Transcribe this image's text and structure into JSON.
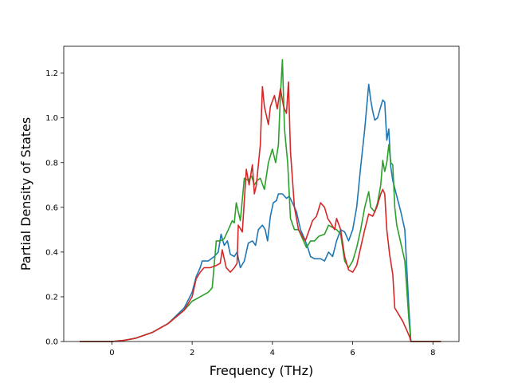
{
  "chart_data": {
    "type": "line",
    "title": "",
    "xlabel": "Frequency (THz)",
    "ylabel": "Partial Density of States",
    "xlim": [
      -1.2,
      8.65
    ],
    "ylim": [
      0.0,
      1.32
    ],
    "grid": false,
    "legend": "none",
    "x_ticks": [
      0,
      2,
      4,
      6,
      8
    ],
    "x_tick_labels": [
      "0",
      "2",
      "4",
      "6",
      "8"
    ],
    "y_ticks": [
      0.0,
      0.2,
      0.4,
      0.6,
      0.8,
      1.0,
      1.2
    ],
    "y_tick_labels": [
      "0.0",
      "0.2",
      "0.4",
      "0.6",
      "0.8",
      "1.0",
      "1.2"
    ],
    "series": [
      {
        "color": "#1f77b4",
        "points": [
          [
            -0.8,
            0.0
          ],
          [
            0.0,
            0.0
          ],
          [
            0.3,
            0.005
          ],
          [
            0.6,
            0.015
          ],
          [
            1.0,
            0.04
          ],
          [
            1.4,
            0.08
          ],
          [
            1.8,
            0.15
          ],
          [
            2.0,
            0.22
          ],
          [
            2.1,
            0.29
          ],
          [
            2.2,
            0.33
          ],
          [
            2.25,
            0.36
          ],
          [
            2.4,
            0.36
          ],
          [
            2.55,
            0.38
          ],
          [
            2.65,
            0.4
          ],
          [
            2.72,
            0.48
          ],
          [
            2.8,
            0.43
          ],
          [
            2.88,
            0.45
          ],
          [
            2.95,
            0.39
          ],
          [
            3.05,
            0.38
          ],
          [
            3.12,
            0.4
          ],
          [
            3.2,
            0.33
          ],
          [
            3.3,
            0.36
          ],
          [
            3.4,
            0.44
          ],
          [
            3.5,
            0.45
          ],
          [
            3.58,
            0.43
          ],
          [
            3.65,
            0.5
          ],
          [
            3.75,
            0.52
          ],
          [
            3.82,
            0.5
          ],
          [
            3.88,
            0.45
          ],
          [
            3.95,
            0.56
          ],
          [
            4.02,
            0.62
          ],
          [
            4.1,
            0.63
          ],
          [
            4.15,
            0.66
          ],
          [
            4.25,
            0.66
          ],
          [
            4.35,
            0.64
          ],
          [
            4.42,
            0.65
          ],
          [
            4.5,
            0.62
          ],
          [
            4.6,
            0.58
          ],
          [
            4.7,
            0.5
          ],
          [
            4.8,
            0.46
          ],
          [
            4.88,
            0.42
          ],
          [
            4.95,
            0.38
          ],
          [
            5.05,
            0.37
          ],
          [
            5.2,
            0.37
          ],
          [
            5.3,
            0.36
          ],
          [
            5.4,
            0.4
          ],
          [
            5.5,
            0.38
          ],
          [
            5.6,
            0.45
          ],
          [
            5.7,
            0.5
          ],
          [
            5.8,
            0.49
          ],
          [
            5.9,
            0.45
          ],
          [
            6.0,
            0.5
          ],
          [
            6.1,
            0.6
          ],
          [
            6.2,
            0.78
          ],
          [
            6.3,
            0.95
          ],
          [
            6.4,
            1.15
          ],
          [
            6.45,
            1.08
          ],
          [
            6.5,
            1.03
          ],
          [
            6.55,
            0.99
          ],
          [
            6.62,
            1.0
          ],
          [
            6.7,
            1.05
          ],
          [
            6.75,
            1.08
          ],
          [
            6.8,
            1.07
          ],
          [
            6.85,
            0.9
          ],
          [
            6.9,
            0.95
          ],
          [
            6.95,
            0.78
          ],
          [
            7.0,
            0.72
          ],
          [
            7.1,
            0.65
          ],
          [
            7.2,
            0.58
          ],
          [
            7.3,
            0.5
          ],
          [
            7.4,
            0.15
          ],
          [
            7.45,
            0.0
          ],
          [
            8.2,
            0.0
          ]
        ]
      },
      {
        "color": "#2ca02c",
        "points": [
          [
            -0.8,
            0.0
          ],
          [
            0.0,
            0.0
          ],
          [
            0.3,
            0.005
          ],
          [
            0.6,
            0.015
          ],
          [
            1.0,
            0.04
          ],
          [
            1.4,
            0.08
          ],
          [
            1.8,
            0.14
          ],
          [
            2.0,
            0.18
          ],
          [
            2.2,
            0.2
          ],
          [
            2.4,
            0.22
          ],
          [
            2.5,
            0.24
          ],
          [
            2.6,
            0.45
          ],
          [
            2.7,
            0.45
          ],
          [
            2.8,
            0.46
          ],
          [
            2.9,
            0.5
          ],
          [
            3.0,
            0.54
          ],
          [
            3.05,
            0.53
          ],
          [
            3.1,
            0.62
          ],
          [
            3.2,
            0.54
          ],
          [
            3.3,
            0.73
          ],
          [
            3.4,
            0.72
          ],
          [
            3.48,
            0.74
          ],
          [
            3.55,
            0.7
          ],
          [
            3.62,
            0.72
          ],
          [
            3.7,
            0.73
          ],
          [
            3.8,
            0.68
          ],
          [
            3.9,
            0.8
          ],
          [
            4.0,
            0.86
          ],
          [
            4.08,
            0.8
          ],
          [
            4.15,
            0.88
          ],
          [
            4.2,
            1.1
          ],
          [
            4.25,
            1.26
          ],
          [
            4.3,
            0.95
          ],
          [
            4.38,
            0.8
          ],
          [
            4.45,
            0.55
          ],
          [
            4.55,
            0.5
          ],
          [
            4.65,
            0.5
          ],
          [
            4.75,
            0.46
          ],
          [
            4.85,
            0.42
          ],
          [
            4.95,
            0.45
          ],
          [
            5.05,
            0.45
          ],
          [
            5.15,
            0.47
          ],
          [
            5.3,
            0.48
          ],
          [
            5.4,
            0.52
          ],
          [
            5.5,
            0.51
          ],
          [
            5.6,
            0.5
          ],
          [
            5.7,
            0.48
          ],
          [
            5.8,
            0.36
          ],
          [
            5.9,
            0.33
          ],
          [
            6.0,
            0.36
          ],
          [
            6.1,
            0.42
          ],
          [
            6.2,
            0.5
          ],
          [
            6.3,
            0.6
          ],
          [
            6.4,
            0.67
          ],
          [
            6.45,
            0.6
          ],
          [
            6.55,
            0.58
          ],
          [
            6.62,
            0.62
          ],
          [
            6.7,
            0.7
          ],
          [
            6.75,
            0.81
          ],
          [
            6.8,
            0.76
          ],
          [
            6.85,
            0.8
          ],
          [
            6.9,
            0.88
          ],
          [
            6.95,
            0.8
          ],
          [
            7.0,
            0.79
          ],
          [
            7.05,
            0.6
          ],
          [
            7.1,
            0.52
          ],
          [
            7.2,
            0.44
          ],
          [
            7.3,
            0.36
          ],
          [
            7.4,
            0.1
          ],
          [
            7.45,
            0.0
          ],
          [
            8.2,
            0.0
          ]
        ]
      },
      {
        "color": "#d62728",
        "points": [
          [
            -0.8,
            0.0
          ],
          [
            0.0,
            0.0
          ],
          [
            0.3,
            0.005
          ],
          [
            0.6,
            0.015
          ],
          [
            1.0,
            0.04
          ],
          [
            1.4,
            0.08
          ],
          [
            1.8,
            0.14
          ],
          [
            2.0,
            0.2
          ],
          [
            2.1,
            0.28
          ],
          [
            2.2,
            0.31
          ],
          [
            2.3,
            0.33
          ],
          [
            2.45,
            0.33
          ],
          [
            2.6,
            0.34
          ],
          [
            2.7,
            0.35
          ],
          [
            2.75,
            0.41
          ],
          [
            2.85,
            0.33
          ],
          [
            2.95,
            0.31
          ],
          [
            3.05,
            0.33
          ],
          [
            3.12,
            0.35
          ],
          [
            3.15,
            0.52
          ],
          [
            3.25,
            0.49
          ],
          [
            3.35,
            0.77
          ],
          [
            3.42,
            0.7
          ],
          [
            3.5,
            0.79
          ],
          [
            3.55,
            0.66
          ],
          [
            3.6,
            0.7
          ],
          [
            3.7,
            0.88
          ],
          [
            3.75,
            1.14
          ],
          [
            3.8,
            1.05
          ],
          [
            3.9,
            0.97
          ],
          [
            3.95,
            1.05
          ],
          [
            4.05,
            1.1
          ],
          [
            4.12,
            1.04
          ],
          [
            4.2,
            1.13
          ],
          [
            4.28,
            1.05
          ],
          [
            4.35,
            1.02
          ],
          [
            4.4,
            1.16
          ],
          [
            4.45,
            0.85
          ],
          [
            4.55,
            0.6
          ],
          [
            4.65,
            0.5
          ],
          [
            4.75,
            0.47
          ],
          [
            4.82,
            0.45
          ],
          [
            4.9,
            0.49
          ],
          [
            5.0,
            0.54
          ],
          [
            5.1,
            0.56
          ],
          [
            5.2,
            0.62
          ],
          [
            5.3,
            0.6
          ],
          [
            5.38,
            0.55
          ],
          [
            5.45,
            0.53
          ],
          [
            5.55,
            0.5
          ],
          [
            5.6,
            0.55
          ],
          [
            5.7,
            0.5
          ],
          [
            5.8,
            0.38
          ],
          [
            5.9,
            0.32
          ],
          [
            6.0,
            0.31
          ],
          [
            6.1,
            0.34
          ],
          [
            6.2,
            0.42
          ],
          [
            6.3,
            0.5
          ],
          [
            6.4,
            0.57
          ],
          [
            6.5,
            0.56
          ],
          [
            6.6,
            0.6
          ],
          [
            6.7,
            0.66
          ],
          [
            6.75,
            0.68
          ],
          [
            6.8,
            0.66
          ],
          [
            6.85,
            0.5
          ],
          [
            6.92,
            0.39
          ],
          [
            7.0,
            0.3
          ],
          [
            7.05,
            0.15
          ],
          [
            7.15,
            0.12
          ],
          [
            7.25,
            0.09
          ],
          [
            7.35,
            0.05
          ],
          [
            7.42,
            0.02
          ],
          [
            7.45,
            0.0
          ],
          [
            8.2,
            0.0
          ]
        ]
      }
    ]
  }
}
